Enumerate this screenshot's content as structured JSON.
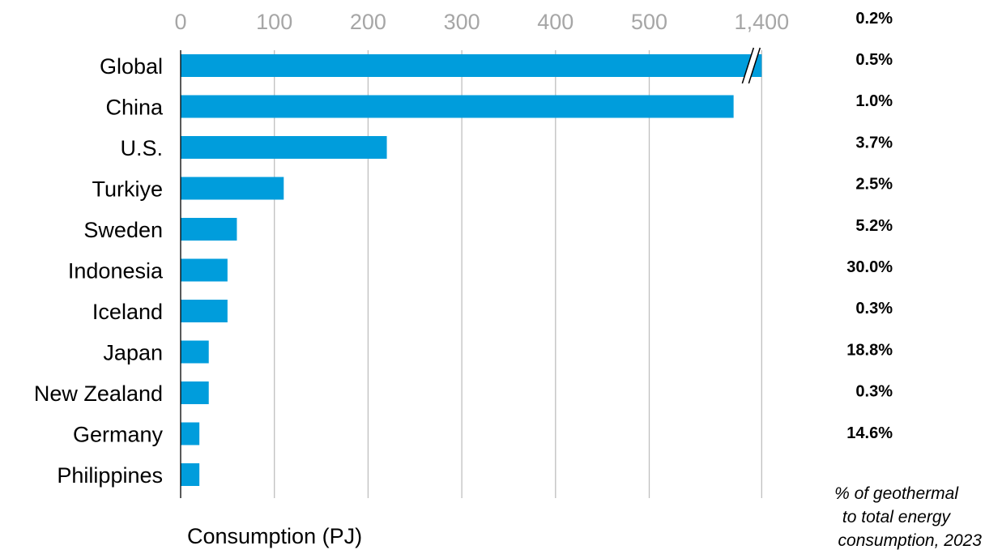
{
  "chart_data": {
    "type": "bar",
    "orientation": "horizontal",
    "xlabel": "Consumption (PJ)",
    "x_ticks": [
      "0",
      "100",
      "200",
      "300",
      "400",
      "500",
      "1,400"
    ],
    "xlim": [
      0,
      620
    ],
    "axis_break": "between 500 and 1,400",
    "grid": true,
    "bar_color": "#009ddc",
    "categories": [
      "Global",
      "China",
      "U.S.",
      "Turkiye",
      "Sweden",
      "Indonesia",
      "Iceland",
      "Japan",
      "New Zealand",
      "Germany",
      "Philippines"
    ],
    "values": [
      1400,
      590,
      220,
      110,
      60,
      50,
      50,
      30,
      30,
      20,
      20
    ],
    "percent_header": "0.2%",
    "percent_labels": [
      "0.5%",
      "1.0%",
      "3.7%",
      "2.5%",
      "5.2%",
      "30.0%",
      "0.3%",
      "18.8%",
      "0.3%",
      "14.6%"
    ],
    "percent_note_lines": [
      "% of geothermal",
      " to total energy",
      "consumption, 2023"
    ]
  }
}
